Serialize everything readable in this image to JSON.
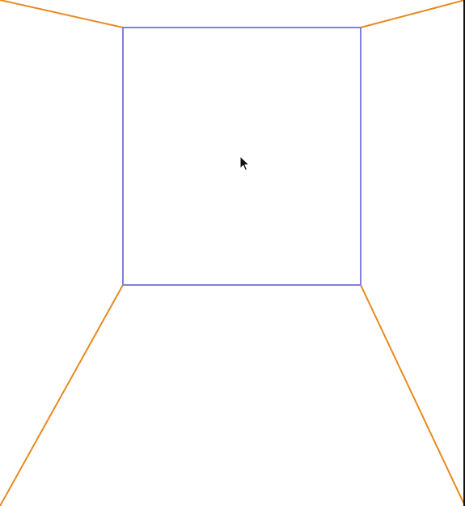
{
  "diagram": {
    "type": "perspective-room-wireframe",
    "colors": {
      "back_wall": "#8080e0",
      "edges": "#e8891e",
      "background": "#ffffff",
      "cursor_fill": "#111111",
      "cursor_stroke": "#ffffff",
      "right_border": "#111111"
    },
    "icons": {
      "cursor": "mouse-pointer-icon"
    }
  }
}
